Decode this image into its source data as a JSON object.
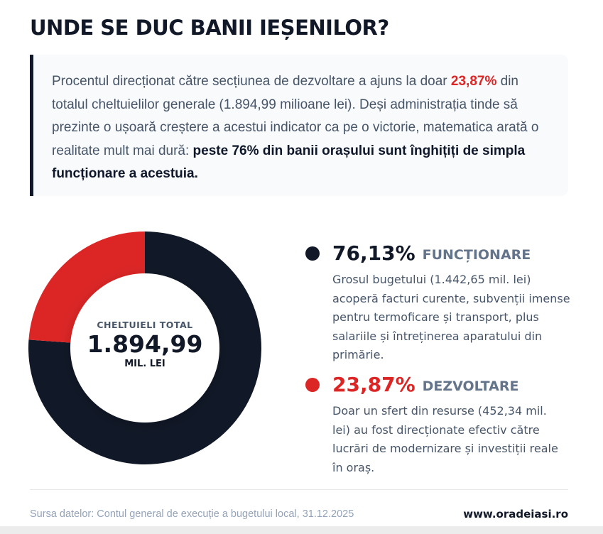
{
  "title": "UNDE SE DUC BANII IEȘENILOR?",
  "intro": {
    "part1": "Procentul direcționat către secțiunea de dezvoltare a ajuns la doar ",
    "highlight": "23,87%",
    "part2": " din totalul cheltuielilor generale (1.894,99 milioane lei). Deși administrația tinde să prezinte o ușoară creștere a acestui indicator ca pe o victorie, matematica arată o realitate mult mai dură: ",
    "bold": "peste 76% din banii orașului sunt înghițiți de simpla funcționare a acestuia."
  },
  "chart_data": {
    "type": "pie",
    "title": "",
    "center_label": "CHELTUIELI TOTAL",
    "center_value": "1.894,99",
    "center_unit": "MIL. LEI",
    "total": 1894.99,
    "slices": [
      {
        "name": "FUNCȚIONARE",
        "percent": 76.13,
        "percent_label": "76,13%",
        "value": 1442.65,
        "color": "#111827",
        "description": "Grosul bugetului (1.442,65 mil. lei) acoperă facturi curente, subvenții imense pentru termoficare și transport, plus salariile și întreținerea aparatului din primărie."
      },
      {
        "name": "DEZVOLTARE",
        "percent": 23.87,
        "percent_label": "23,87%",
        "value": 452.34,
        "color": "#dc2626",
        "description": "Doar un sfert din resurse (452,34 mil. lei) au fost direcționate efectiv către lucrări de modernizare și investiții reale în oraș."
      }
    ]
  },
  "footer": {
    "source": "Sursa datelor: Contul general de execuție a bugetului local, 31.12.2025",
    "site": "www.oradeiasi.ro"
  }
}
